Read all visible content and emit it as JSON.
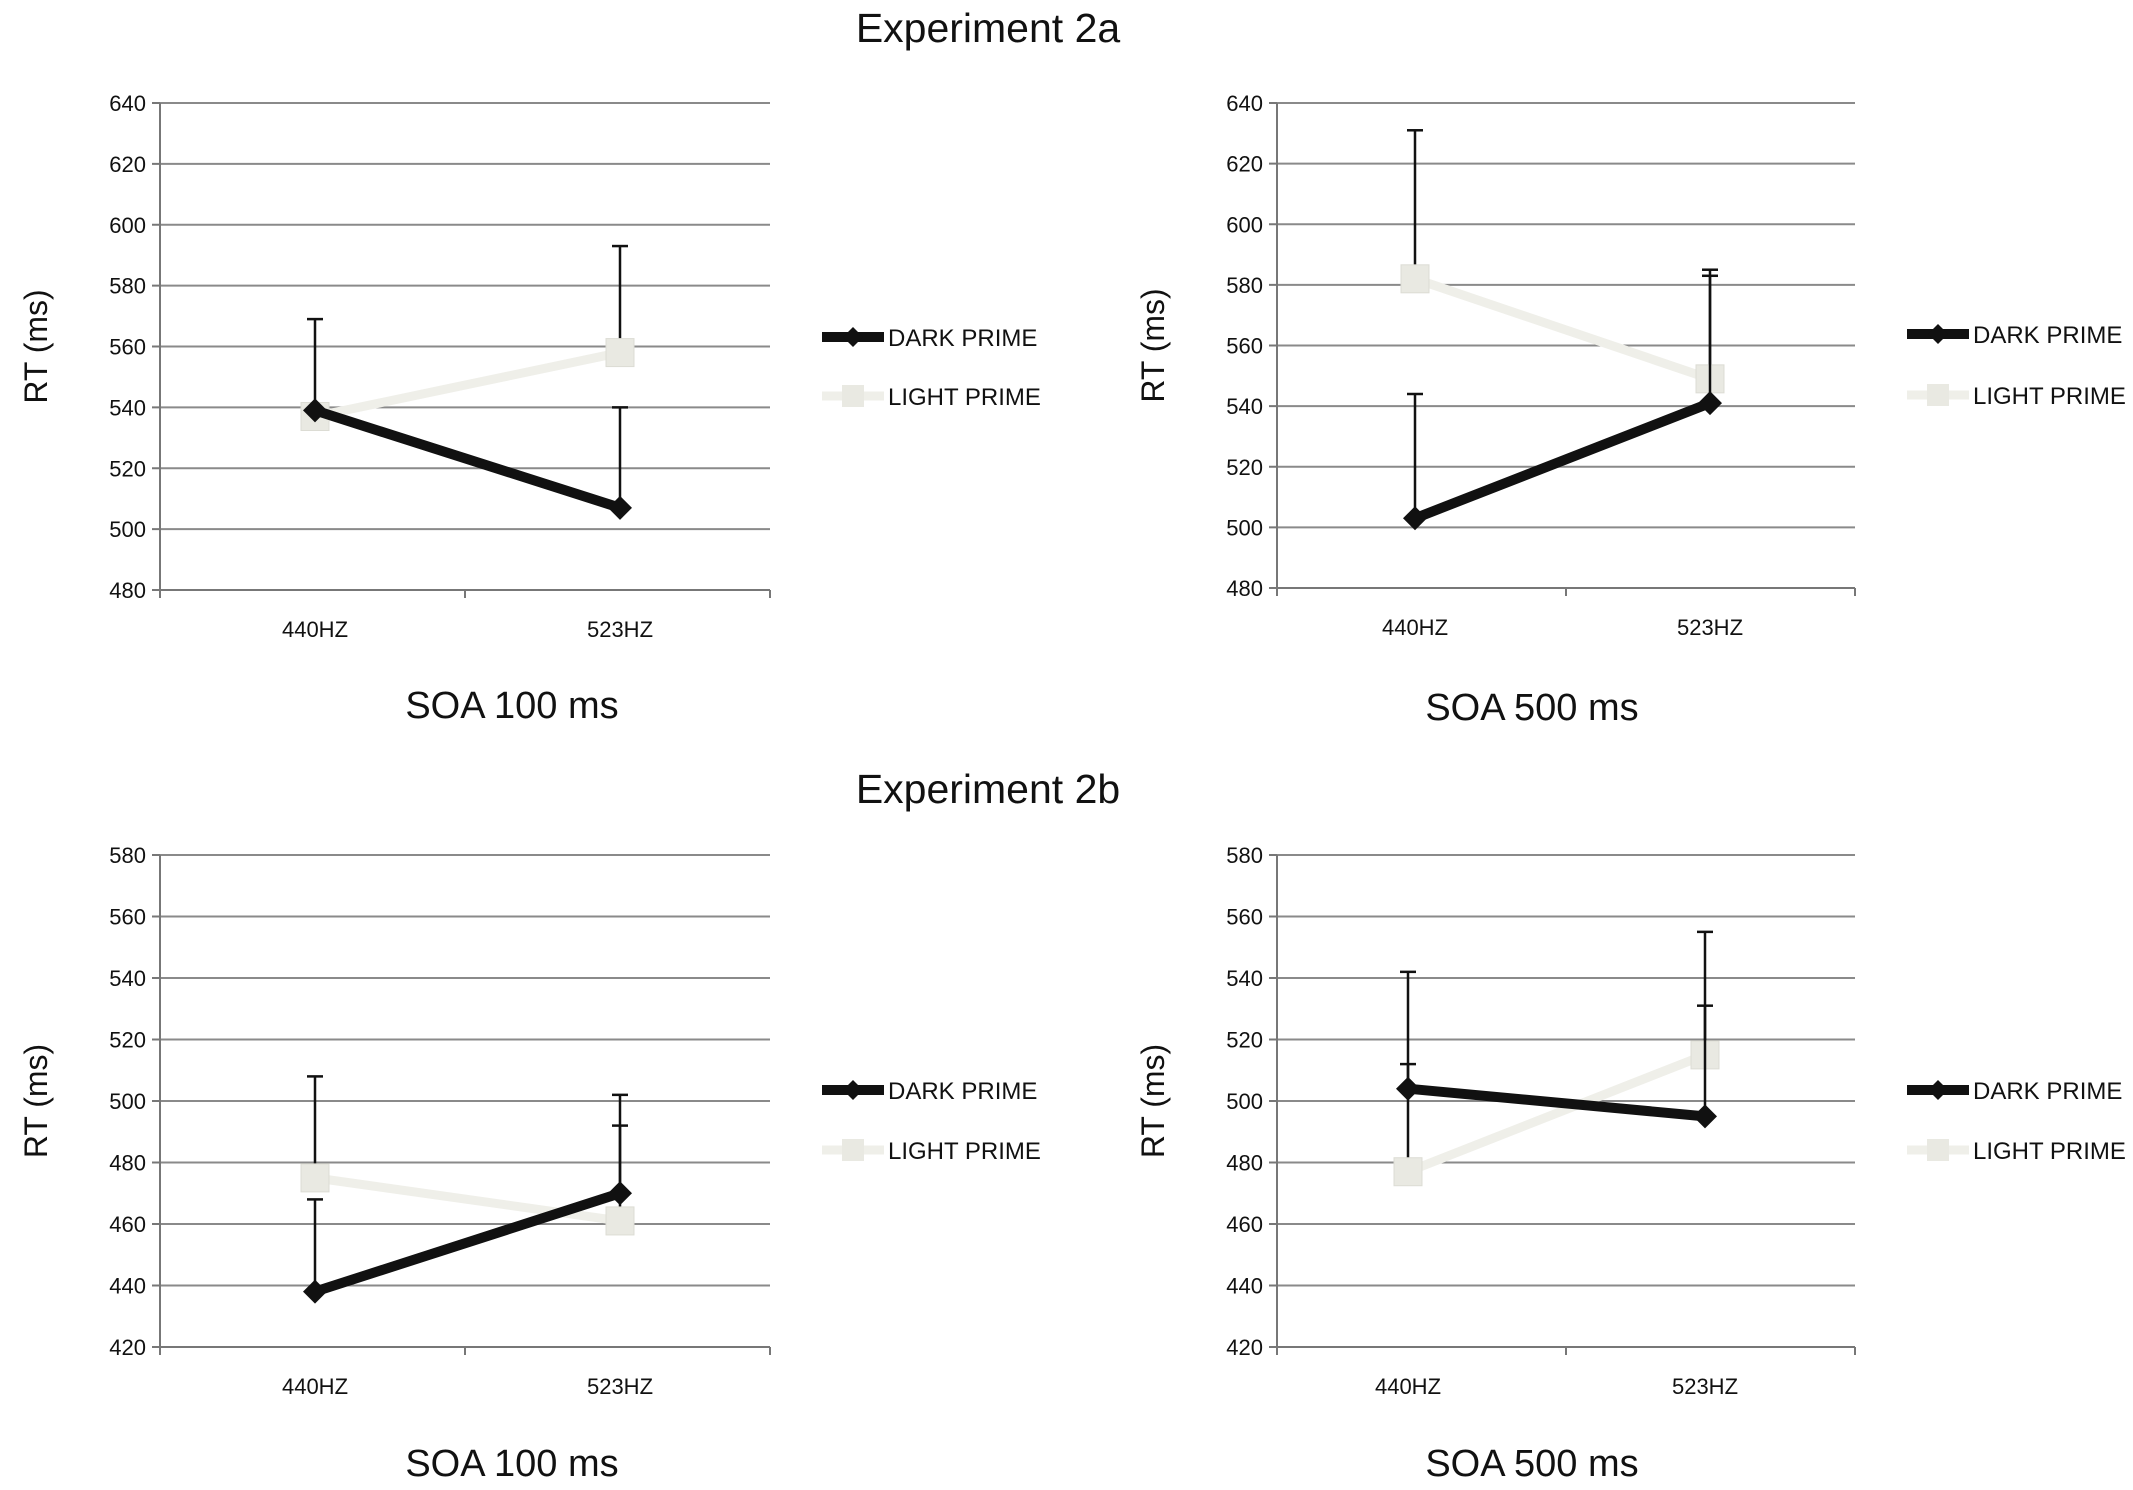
{
  "figure": {
    "section_titles": [
      "Experiment 2a",
      "Experiment 2b"
    ]
  },
  "colors": {
    "dark": "#111111",
    "light": "#efefe9",
    "light_marker": "#e9e9e2",
    "grid": "#8a8a8a"
  },
  "chart_data": [
    {
      "type": "line",
      "experiment": "Experiment 2a",
      "title": "SOA 100 ms",
      "xlabel": "SOA 100 ms",
      "ylabel": "RT (ms)",
      "categories": [
        "440HZ",
        "523HZ"
      ],
      "ylim": [
        480,
        640
      ],
      "yticks": [
        480,
        500,
        520,
        540,
        560,
        580,
        600,
        620,
        640
      ],
      "legend_position": "right",
      "series": [
        {
          "name": "DARK PRIME",
          "style": "dark",
          "values": [
            539,
            507
          ],
          "err_plus": [
            30,
            33
          ]
        },
        {
          "name": "LIGHT PRIME",
          "style": "light",
          "values": [
            537,
            558
          ],
          "err_plus": [
            0,
            35
          ]
        }
      ]
    },
    {
      "type": "line",
      "experiment": "Experiment 2a",
      "title": "SOA 500 ms",
      "xlabel": "SOA 500 ms",
      "ylabel": "RT (ms)",
      "categories": [
        "440HZ",
        "523HZ"
      ],
      "ylim": [
        480,
        640
      ],
      "yticks": [
        480,
        500,
        520,
        540,
        560,
        580,
        600,
        620,
        640
      ],
      "legend_position": "right",
      "series": [
        {
          "name": "DARK PRIME",
          "style": "dark",
          "values": [
            503,
            541
          ],
          "err_plus": [
            41,
            44
          ]
        },
        {
          "name": "LIGHT PRIME",
          "style": "light",
          "values": [
            582,
            549
          ],
          "err_plus": [
            49,
            34
          ]
        }
      ]
    },
    {
      "type": "line",
      "experiment": "Experiment 2b",
      "title": "SOA 100 ms",
      "xlabel": "SOA 100 ms",
      "ylabel": "RT (ms)",
      "categories": [
        "440HZ",
        "523HZ"
      ],
      "ylim": [
        420,
        580
      ],
      "yticks": [
        420,
        440,
        460,
        480,
        500,
        520,
        540,
        560,
        580
      ],
      "legend_position": "right",
      "series": [
        {
          "name": "DARK PRIME",
          "style": "dark",
          "values": [
            438,
            470
          ],
          "err_plus": [
            30,
            32
          ]
        },
        {
          "name": "LIGHT PRIME",
          "style": "light",
          "values": [
            475,
            461
          ],
          "err_plus": [
            33,
            31
          ]
        }
      ]
    },
    {
      "type": "line",
      "experiment": "Experiment 2b",
      "title": "SOA 500 ms",
      "xlabel": "SOA 500 ms",
      "ylabel": "RT (ms)",
      "categories": [
        "440HZ",
        "523HZ"
      ],
      "ylim": [
        420,
        580
      ],
      "yticks": [
        420,
        440,
        460,
        480,
        500,
        520,
        540,
        560,
        580
      ],
      "legend_position": "right",
      "series": [
        {
          "name": "DARK PRIME",
          "style": "dark",
          "values": [
            504,
            495
          ],
          "err_plus": [
            38,
            36
          ]
        },
        {
          "name": "LIGHT PRIME",
          "style": "light",
          "values": [
            477,
            515
          ],
          "err_plus": [
            35,
            40
          ]
        }
      ]
    }
  ]
}
